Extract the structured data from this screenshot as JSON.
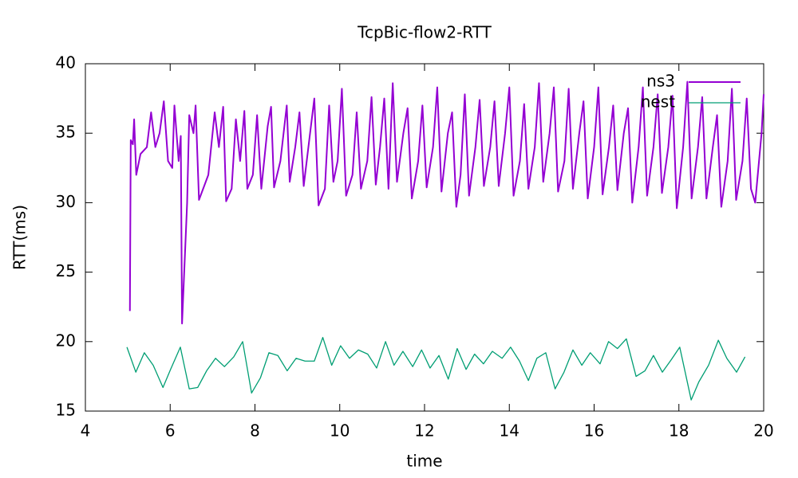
{
  "chart_data": {
    "type": "line",
    "title": "TcpBic-flow2-RTT",
    "x_label": "time",
    "y_label": "RTT(ms)",
    "xlim": [
      4,
      20
    ],
    "xticks": [
      4,
      6,
      8,
      10,
      12,
      14,
      16,
      18,
      20
    ],
    "ylim": [
      15,
      40
    ],
    "yticks": [
      15,
      20,
      25,
      30,
      35,
      40
    ],
    "legend": "top-right",
    "series": [
      {
        "name": "ns3",
        "color": "#9400d3",
        "x": [
          5.05,
          5.07,
          5.12,
          5.15,
          5.2,
          5.3,
          5.45,
          5.55,
          5.65,
          5.75,
          5.85,
          5.95,
          6.05,
          6.1,
          6.2,
          6.25,
          6.28,
          6.4,
          6.45,
          6.55,
          6.6,
          6.68,
          6.9,
          7.05,
          7.15,
          7.25,
          7.32,
          7.45,
          7.55,
          7.65,
          7.75,
          7.82,
          7.95,
          8.05,
          8.15,
          8.3,
          8.38,
          8.45,
          8.6,
          8.75,
          8.82,
          8.95,
          9.05,
          9.15,
          9.3,
          9.4,
          9.5,
          9.65,
          9.75,
          9.85,
          9.95,
          10.05,
          10.15,
          10.3,
          10.4,
          10.5,
          10.65,
          10.75,
          10.85,
          10.95,
          11.05,
          11.15,
          11.25,
          11.35,
          11.5,
          11.6,
          11.7,
          11.85,
          11.95,
          12.05,
          12.2,
          12.3,
          12.4,
          12.55,
          12.65,
          12.75,
          12.85,
          12.95,
          13.05,
          13.2,
          13.3,
          13.4,
          13.55,
          13.65,
          13.75,
          13.9,
          14.0,
          14.1,
          14.25,
          14.35,
          14.45,
          14.6,
          14.7,
          14.8,
          14.95,
          15.05,
          15.15,
          15.3,
          15.4,
          15.5,
          15.65,
          15.75,
          15.85,
          16.0,
          16.1,
          16.2,
          16.35,
          16.45,
          16.55,
          16.7,
          16.8,
          16.9,
          17.05,
          17.15,
          17.25,
          17.4,
          17.5,
          17.6,
          17.75,
          17.85,
          17.95,
          18.1,
          18.2,
          18.3,
          18.45,
          18.55,
          18.65,
          18.8,
          18.9,
          19.0,
          19.15,
          19.25,
          19.35,
          19.5,
          19.6,
          19.7,
          19.8,
          19.95,
          20.0
        ],
        "values": [
          22.2,
          34.5,
          34.2,
          36.0,
          32.0,
          33.5,
          34.0,
          36.5,
          34.0,
          35.0,
          37.3,
          33.0,
          32.5,
          37.0,
          33.0,
          34.8,
          21.3,
          30,
          36.3,
          35,
          37.0,
          30.2,
          32,
          36.5,
          34,
          36.9,
          30.1,
          31,
          36.0,
          33,
          36.6,
          31.0,
          32,
          36.3,
          31,
          35.5,
          36.9,
          31.1,
          33,
          37.0,
          31.5,
          34,
          36.5,
          31.2,
          35,
          37.5,
          29.8,
          31,
          37.0,
          31.5,
          33,
          38.2,
          30.5,
          32,
          36.5,
          31,
          33,
          37.6,
          31.3,
          34,
          37.5,
          31,
          38.6,
          31.5,
          35,
          36.8,
          30.3,
          33,
          37.0,
          31.1,
          34,
          38.3,
          30.8,
          35,
          36.5,
          29.7,
          32,
          37.8,
          30.5,
          34,
          37.4,
          31.2,
          34,
          37.3,
          31.2,
          35,
          38.3,
          30.5,
          33,
          37.1,
          31.0,
          34,
          38.6,
          31.5,
          35,
          38.3,
          30.8,
          33,
          38.2,
          31,
          35,
          37.3,
          30.3,
          34,
          38.3,
          30.6,
          34,
          37.0,
          30.9,
          35,
          36.8,
          30.0,
          34,
          38.3,
          30.5,
          34,
          37.8,
          30.7,
          34,
          37.7,
          29.6,
          34,
          38.7,
          30.3,
          34,
          37.6,
          30.3,
          34,
          36.3,
          29.7,
          33,
          38.2,
          30.2,
          33,
          37.5,
          31.0,
          30.0,
          35,
          37.8
        ]
      },
      {
        "name": "nest",
        "color": "#009e73",
        "x": [
          4.98,
          5.19,
          5.39,
          5.6,
          5.83,
          6.01,
          6.24,
          6.45,
          6.65,
          6.86,
          7.07,
          7.28,
          7.5,
          7.71,
          7.92,
          8.13,
          8.33,
          8.54,
          8.76,
          8.97,
          9.18,
          9.4,
          9.6,
          9.81,
          10.02,
          10.23,
          10.44,
          10.66,
          10.87,
          11.08,
          11.28,
          11.49,
          11.72,
          11.93,
          12.13,
          12.34,
          12.56,
          12.77,
          12.98,
          13.18,
          13.39,
          13.6,
          13.83,
          14.03,
          14.24,
          14.45,
          14.65,
          14.86,
          15.08,
          15.29,
          15.5,
          15.71,
          15.91,
          16.14,
          16.34,
          16.55,
          16.76,
          16.99,
          17.2,
          17.4,
          17.61,
          17.82,
          18.02,
          18.29,
          18.47,
          18.7,
          18.93,
          19.13,
          19.36,
          19.56
        ],
        "values": [
          19.6,
          17.8,
          19.2,
          18.3,
          16.7,
          18.0,
          19.6,
          16.6,
          16.7,
          17.9,
          18.8,
          18.2,
          18.9,
          20.0,
          16.3,
          17.4,
          19.2,
          19.0,
          17.9,
          18.8,
          18.6,
          18.6,
          20.3,
          18.3,
          19.7,
          18.8,
          19.4,
          19.1,
          18.1,
          20.0,
          18.3,
          19.3,
          18.2,
          19.4,
          18.1,
          19.0,
          17.3,
          19.5,
          18.0,
          19.1,
          18.4,
          19.3,
          18.8,
          19.6,
          18.6,
          17.2,
          18.8,
          19.2,
          16.6,
          17.8,
          19.4,
          18.3,
          19.2,
          18.4,
          20.0,
          19.5,
          20.2,
          17.5,
          17.9,
          19.0,
          17.8,
          18.7,
          19.6,
          15.8,
          17.1,
          18.3,
          20.1,
          18.8,
          17.8,
          18.9
        ]
      }
    ]
  }
}
